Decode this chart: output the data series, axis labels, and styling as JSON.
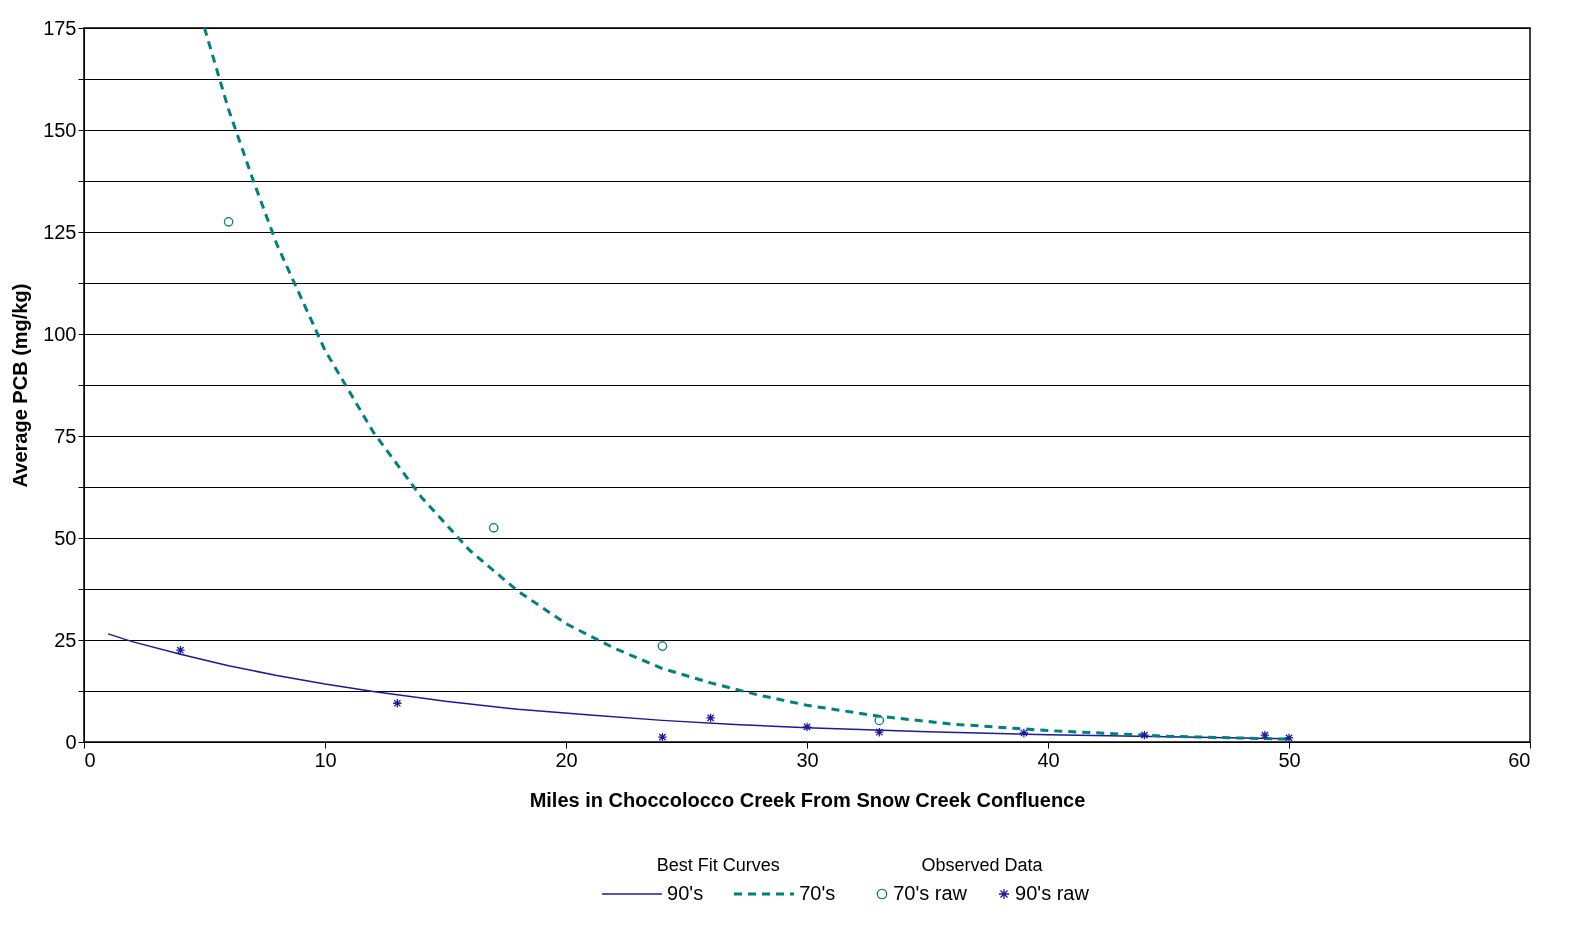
{
  "chart_data": {
    "type": "line",
    "xlabel": "Miles in Choccolocco Creek From Snow Creek Confluence",
    "ylabel": "Average PCB (mg/kg)",
    "xlim": [
      0,
      60
    ],
    "xticks": [
      0,
      10,
      20,
      30,
      40,
      50,
      60
    ],
    "ylim": [
      0,
      175
    ],
    "yticks": [
      0,
      {
        "value": 12.5,
        "label": null
      },
      25,
      {
        "value": 37.5,
        "label": null
      },
      50,
      {
        "value": 62.5,
        "label": null
      },
      75,
      {
        "value": 87.5,
        "label": null
      },
      100,
      {
        "value": 112.5,
        "label": null
      },
      125,
      {
        "value": 137.5,
        "label": null
      },
      150,
      {
        "value": 162.5,
        "label": null
      },
      175
    ],
    "grid": "y",
    "legend": "bottom",
    "annotations": [
      "Best Fit Curves",
      "Observed Data"
    ],
    "series": [
      {
        "name": "90's",
        "color": "#1a1a9a",
        "line_style": "solid",
        "x": [
          1,
          2,
          4,
          6,
          8,
          10,
          12,
          15,
          18,
          21,
          24,
          27,
          30,
          35,
          40,
          45,
          50
        ],
        "values": [
          26.5,
          24.6,
          21.5,
          18.7,
          16.3,
          14.2,
          12.4,
          10,
          8,
          6.6,
          5.3,
          4.3,
          3.5,
          2.5,
          1.8,
          1.3,
          0.8
        ]
      },
      {
        "name": "70's",
        "color": "#008080",
        "line_style": "dashed",
        "x": [
          5,
          6,
          7,
          8,
          10,
          12,
          14,
          16,
          18,
          20,
          22,
          24,
          26,
          28,
          30,
          33,
          36,
          40,
          45,
          50
        ],
        "values": [
          175,
          155,
          138,
          122,
          96,
          76,
          60,
          47,
          37,
          29,
          23,
          18,
          14.5,
          11.5,
          9,
          6.3,
          4.4,
          2.8,
          1.4,
          0.7
        ]
      },
      {
        "name": "70's raw",
        "type": "scatter",
        "color": "#008080",
        "marker": "circle",
        "x": [
          6,
          17,
          24,
          33
        ],
        "values": [
          127.5,
          52.5,
          23.5,
          5.3
        ]
      },
      {
        "name": "90's raw",
        "type": "scatter",
        "color": "#1a1a9a",
        "marker": "cross",
        "x": [
          4,
          13,
          24,
          26,
          30,
          33,
          39,
          44,
          49,
          50
        ],
        "values": [
          22.5,
          9.5,
          1.2,
          5.9,
          3.7,
          2.4,
          2.2,
          1.7,
          1.7,
          1
        ]
      }
    ]
  }
}
